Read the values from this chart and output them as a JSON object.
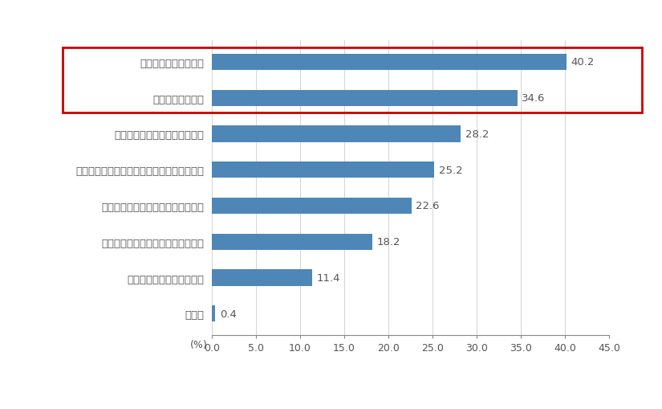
{
  "categories": [
    "その他",
    "仕事へのスキルが上がった",
    "仕事へのモチベーションが上がった",
    "自分の業務には直接影鿳がなかった",
    "よりやりたい仕事に集中できるようになった",
    "より成果を出せるようになった",
    "生産性が向上した",
    "作業時間が削減できた"
  ],
  "values": [
    0.4,
    11.4,
    18.2,
    22.6,
    25.2,
    28.2,
    34.6,
    40.2
  ],
  "bar_color": "#4e86b8",
  "highlight_indices": [
    6,
    7
  ],
  "highlight_rect_color": "#cc0000",
  "xlim": [
    0,
    45
  ],
  "xticks": [
    0.0,
    5.0,
    10.0,
    15.0,
    20.0,
    25.0,
    30.0,
    35.0,
    40.0,
    45.0
  ],
  "background_color": "#ffffff",
  "value_fontsize": 9.5,
  "label_fontsize": 9.5,
  "tick_fontsize": 9,
  "bar_height": 0.45
}
